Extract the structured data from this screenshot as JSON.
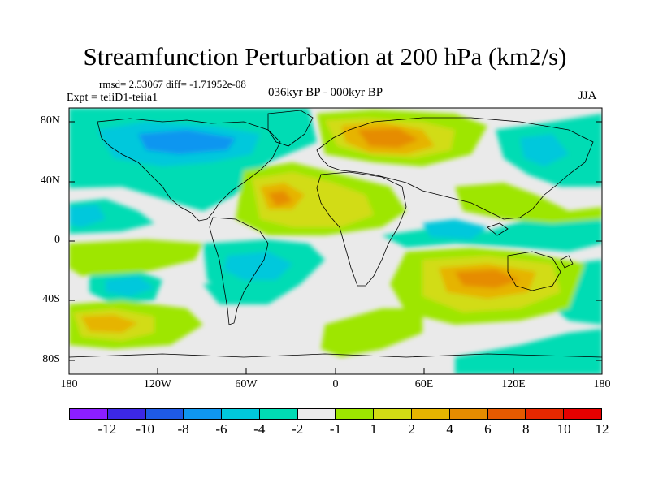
{
  "title": "Streamfunction Perturbation at 200 hPa (km2/s)",
  "stats": "rmsd= 2.53067  diff= -1.71952e-08",
  "experiment": "Expt = teiiD1-teiia1",
  "period": "036kyr BP - 000kyr BP",
  "season": "JJA",
  "lat_labels": [
    "80N",
    "40N",
    "0",
    "40S",
    "80S"
  ],
  "lon_labels": [
    "180",
    "120W",
    "60W",
    "0",
    "60E",
    "120E",
    "180"
  ],
  "colorbar": {
    "colors": [
      "#8c1eff",
      "#3c28e6",
      "#1e5ae6",
      "#0f96f0",
      "#00c8dc",
      "#00dcb4",
      "#eaeaea",
      "#9ee600",
      "#d2dc14",
      "#e6b400",
      "#e68c00",
      "#e65a00",
      "#e62800",
      "#e60000"
    ],
    "labels": [
      "-12",
      "-10",
      "-8",
      "-6",
      "-4",
      "-2",
      "-1",
      "1",
      "2",
      "4",
      "6",
      "8",
      "10",
      "12"
    ]
  }
}
